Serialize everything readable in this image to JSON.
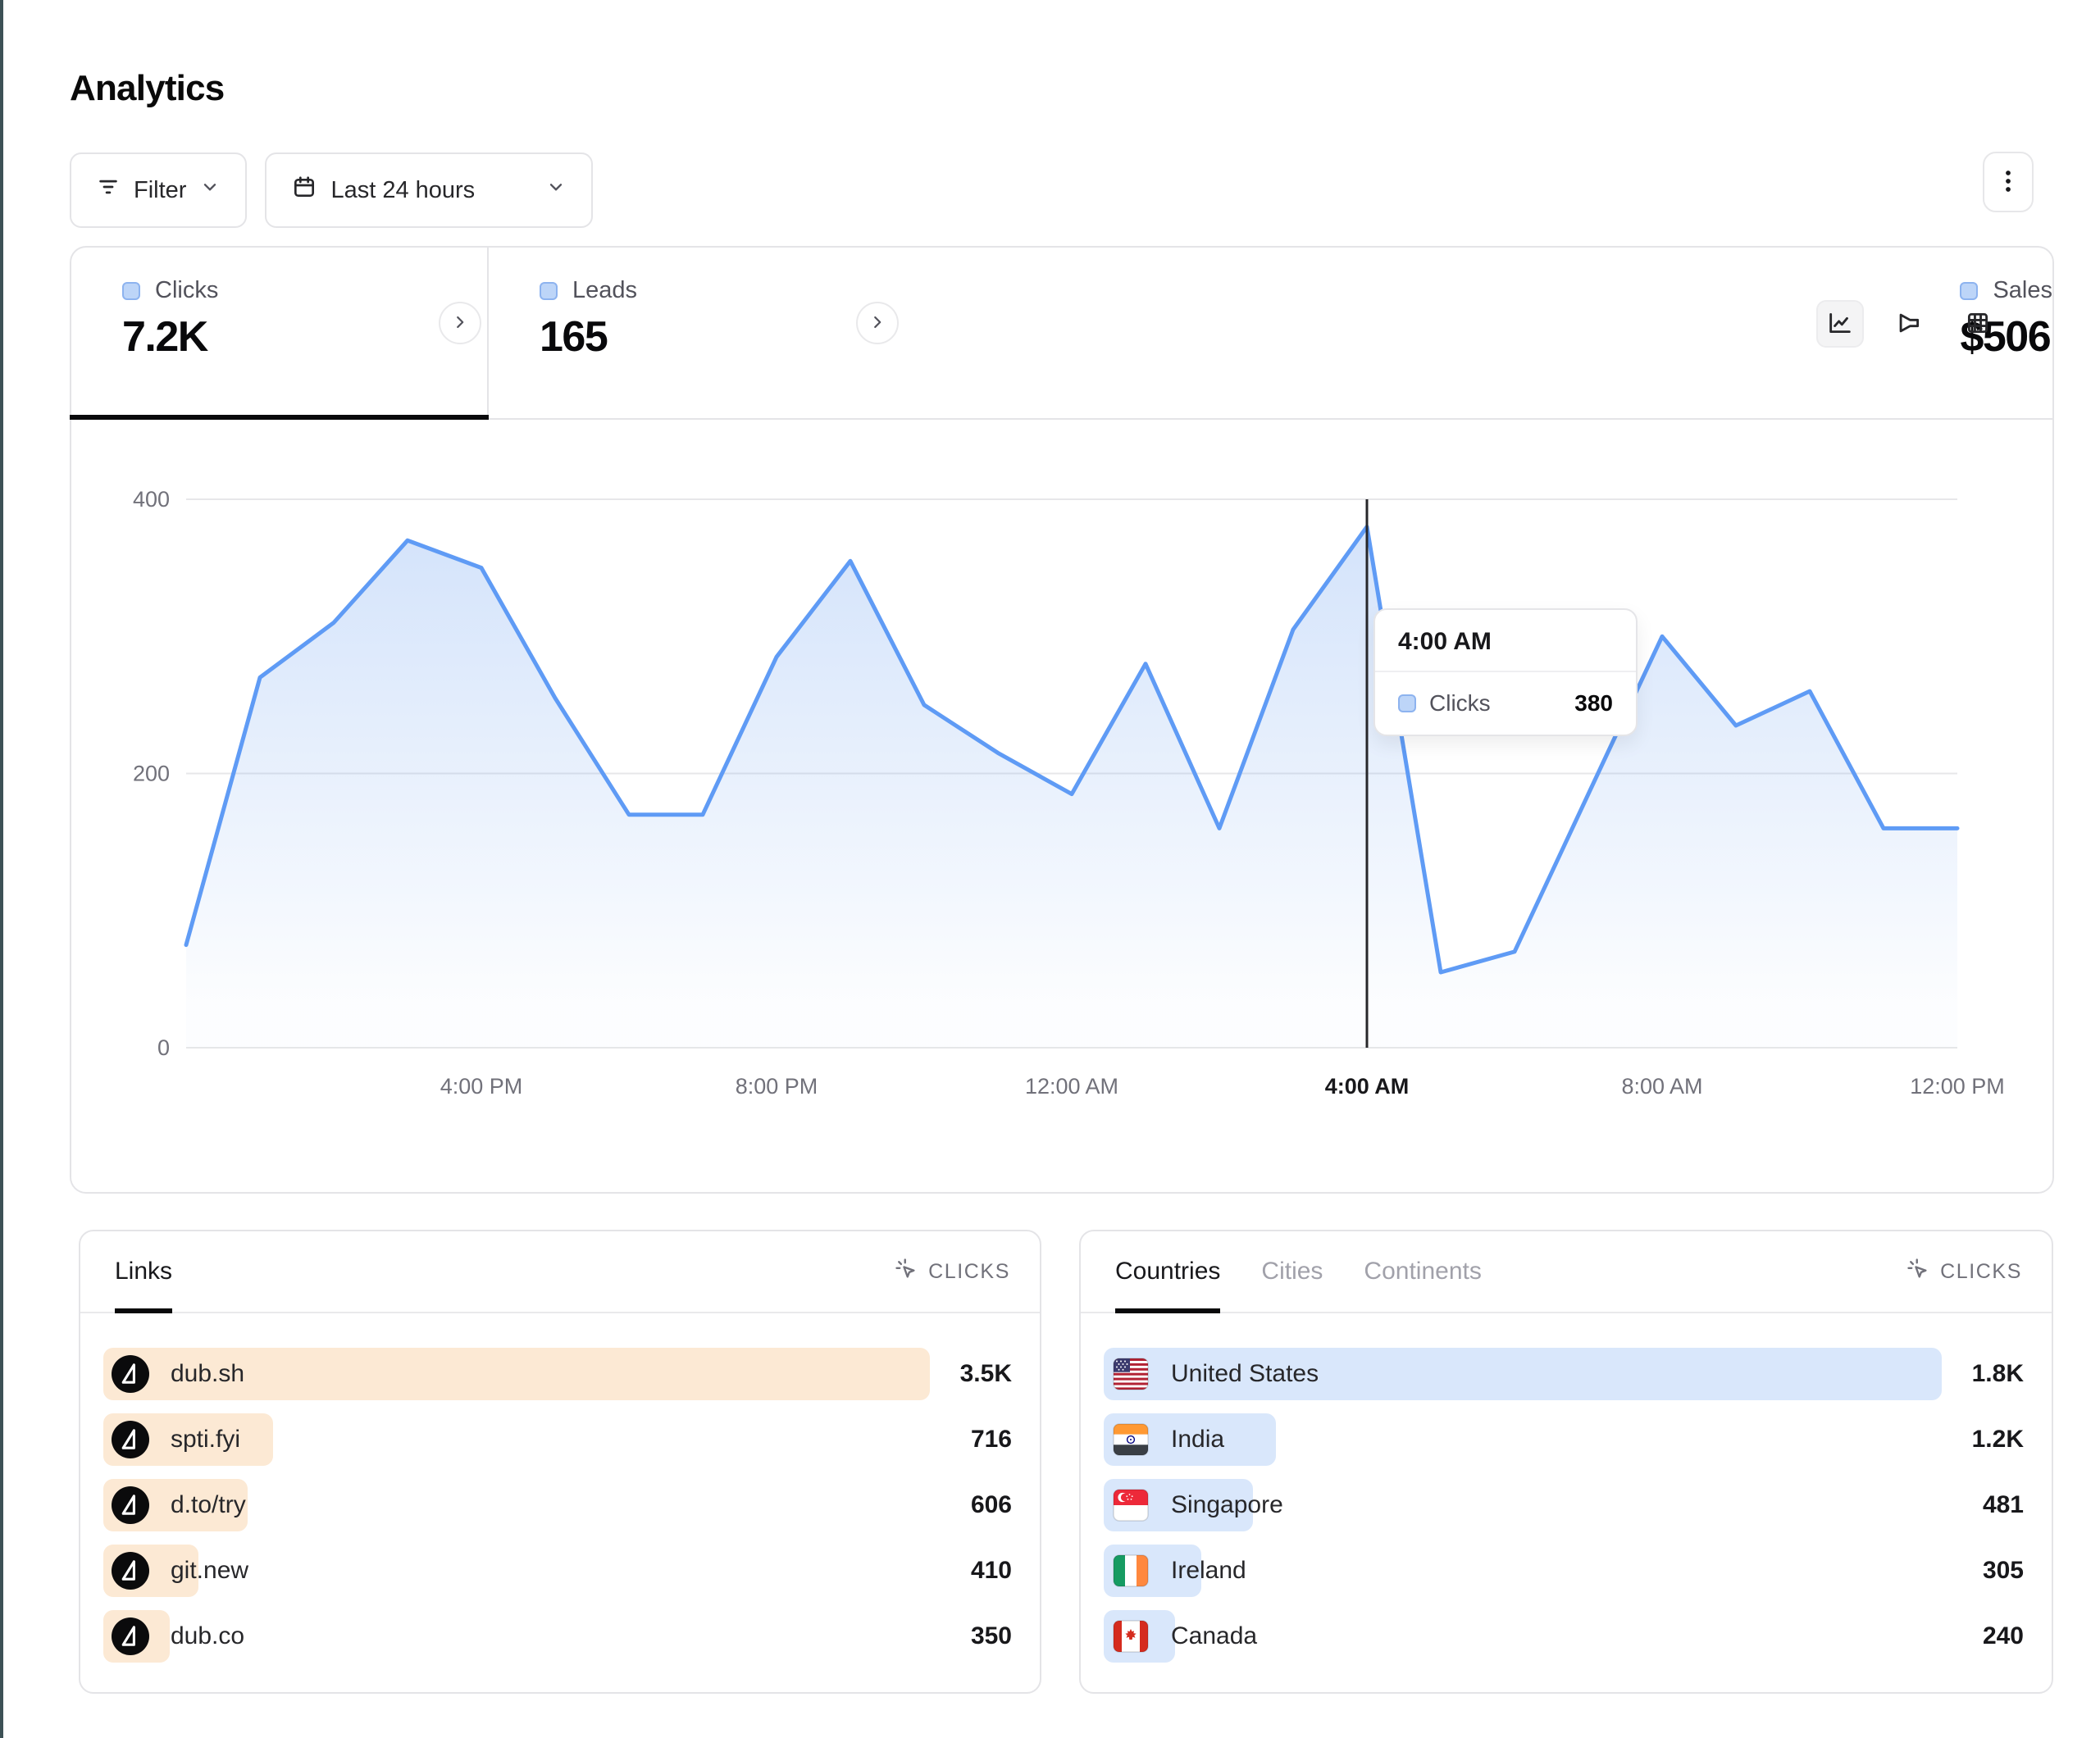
{
  "page": {
    "title": "Analytics"
  },
  "toolbar": {
    "filter": {
      "label": "Filter",
      "icon": "filter-icon"
    },
    "date_range": {
      "label": "Last 24 hours",
      "icon": "calendar-icon"
    },
    "more_menu_icon": "kebab-menu-icon"
  },
  "stat_tabs": [
    {
      "label": "Clicks",
      "value": "7.2K",
      "active": true
    },
    {
      "label": "Leads",
      "value": "165",
      "active": false
    },
    {
      "label": "Sales",
      "value": "$506",
      "active": false
    }
  ],
  "chart": {
    "view_modes": [
      {
        "icon": "line-chart-icon",
        "active": true
      },
      {
        "icon": "funnel-chart-icon",
        "active": false
      },
      {
        "icon": "table-grid-icon",
        "active": false
      }
    ]
  },
  "chart_data": {
    "type": "area",
    "series": [
      {
        "name": "Clicks",
        "color": "#5f9bf5",
        "values": [
          75,
          270,
          310,
          370,
          350,
          255,
          170,
          170,
          285,
          355,
          250,
          215,
          185,
          280,
          160,
          305,
          380,
          55,
          70,
          185,
          300,
          235,
          260,
          160,
          160
        ]
      }
    ],
    "x_start": "12:00 PM",
    "x_interval": "1 hour",
    "x_ticks": [
      {
        "label": "4:00 PM",
        "index": 4
      },
      {
        "label": "8:00 PM",
        "index": 8
      },
      {
        "label": "12:00 AM",
        "index": 12
      },
      {
        "label": "4:00 AM",
        "index": 16,
        "emphasis": true
      },
      {
        "label": "8:00 AM",
        "index": 20
      },
      {
        "label": "12:00 PM",
        "index": 24
      }
    ],
    "y_ticks": [
      0,
      200,
      400
    ],
    "ylim": [
      0,
      400
    ],
    "grid": "horizontal",
    "legend_position": "none",
    "hover": {
      "index": 16,
      "label": "4:00 AM",
      "series": "Clicks",
      "value": 380
    }
  },
  "tooltip": {
    "title": "4:00 AM",
    "row": {
      "label": "Clicks",
      "value": "380"
    }
  },
  "links_panel": {
    "tabs": [
      {
        "label": "Links",
        "active": true
      }
    ],
    "metric_label": "CLICKS",
    "metric_icon": "cursor-click-icon",
    "rows": [
      {
        "label": "dub.sh",
        "value": "3.5K",
        "bar_pct": 100,
        "icon": "dub-logo"
      },
      {
        "label": "spti.fyi",
        "value": "716",
        "bar_pct": 20.5,
        "icon": "dub-logo"
      },
      {
        "label": "d.to/try",
        "value": "606",
        "bar_pct": 17.5,
        "icon": "dub-logo"
      },
      {
        "label": "git.new",
        "value": "410",
        "bar_pct": 11.5,
        "icon": "dub-logo"
      },
      {
        "label": "dub.co",
        "value": "350",
        "bar_pct": 8,
        "icon": "dub-logo"
      }
    ]
  },
  "countries_panel": {
    "tabs": [
      {
        "label": "Countries",
        "active": true
      },
      {
        "label": "Cities",
        "active": false
      },
      {
        "label": "Continents",
        "active": false
      }
    ],
    "metric_label": "CLICKS",
    "metric_icon": "cursor-click-icon",
    "rows": [
      {
        "label": "United States",
        "value": "1.8K",
        "bar_pct": 100,
        "icon": "flag-us"
      },
      {
        "label": "India",
        "value": "1.2K",
        "bar_pct": 20.5,
        "icon": "flag-in"
      },
      {
        "label": "Singapore",
        "value": "481",
        "bar_pct": 17.8,
        "icon": "flag-sg"
      },
      {
        "label": "Ireland",
        "value": "305",
        "bar_pct": 11.6,
        "icon": "flag-ie"
      },
      {
        "label": "Canada",
        "value": "240",
        "bar_pct": 8.5,
        "icon": "flag-ca"
      }
    ]
  },
  "colors": {
    "accent_line": "#5f9bf5",
    "links_bar": "#fce9d4",
    "countries_bar": "#d9e7fb",
    "active_underline": "#09090b",
    "edge_strip": "#3d5156"
  }
}
